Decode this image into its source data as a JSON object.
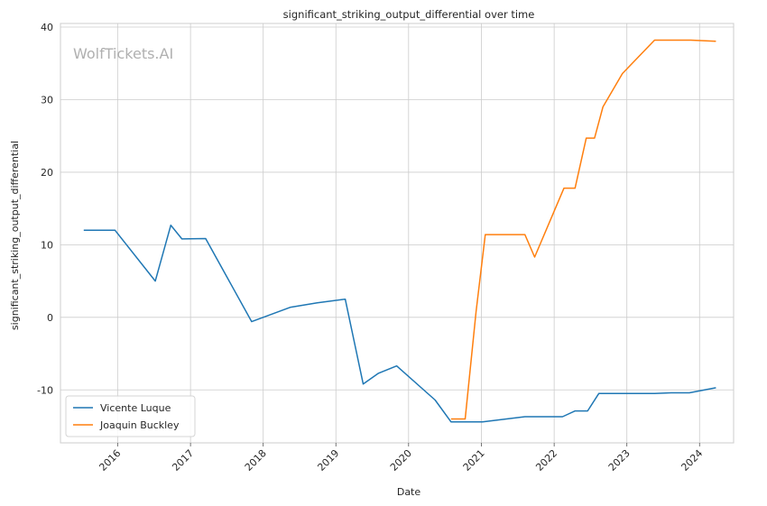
{
  "chart_data": {
    "type": "line",
    "title": "significant_striking_output_differential over time",
    "xlabel": "Date",
    "ylabel": "significant_striking_output_differential",
    "watermark": "WolfTickets.AI",
    "x_ticks": [
      "2016",
      "2017",
      "2018",
      "2019",
      "2020",
      "2021",
      "2022",
      "2023",
      "2024"
    ],
    "y_ticks": [
      -10,
      0,
      10,
      20,
      30,
      40
    ],
    "xlim": [
      "2015-03-20",
      "2024-06-20"
    ],
    "ylim": [
      -17.3,
      40.5
    ],
    "grid": true,
    "legend_position": "lower-left",
    "series": [
      {
        "name": "Vicente Luque",
        "color": "#1f77b4",
        "points": [
          [
            "2015-07-15",
            12.0
          ],
          [
            "2015-12-19",
            12.0
          ],
          [
            "2016-07-08",
            5.0
          ],
          [
            "2016-09-24",
            12.7
          ],
          [
            "2016-11-19",
            10.8
          ],
          [
            "2017-03-18",
            10.85
          ],
          [
            "2017-11-04",
            -0.6
          ],
          [
            "2018-05-19",
            1.4
          ],
          [
            "2018-09-29",
            2.0
          ],
          [
            "2019-02-17",
            2.5
          ],
          [
            "2019-05-18",
            -9.2
          ],
          [
            "2019-08-03",
            -7.7
          ],
          [
            "2019-11-02",
            -6.7
          ],
          [
            "2020-05-13",
            -11.4
          ],
          [
            "2020-08-01",
            -14.4
          ],
          [
            "2021-01-06",
            -14.4
          ],
          [
            "2021-08-07",
            -13.7
          ],
          [
            "2022-02-12",
            -13.7
          ],
          [
            "2022-04-16",
            -12.9
          ],
          [
            "2022-06-18",
            -12.9
          ],
          [
            "2022-08-13",
            -10.5
          ],
          [
            "2023-05-20",
            -10.5
          ],
          [
            "2023-08-12",
            -10.4
          ],
          [
            "2023-11-11",
            -10.4
          ],
          [
            "2024-03-23",
            -9.7
          ]
        ]
      },
      {
        "name": "Joaquin Buckley",
        "color": "#ff7f0e",
        "points": [
          [
            "2020-08-01",
            -14.0
          ],
          [
            "2020-10-11",
            -14.0
          ],
          [
            "2020-12-05",
            0.8
          ],
          [
            "2021-01-20",
            11.4
          ],
          [
            "2021-08-07",
            11.4
          ],
          [
            "2021-09-25",
            8.3
          ],
          [
            "2022-02-19",
            17.8
          ],
          [
            "2022-04-16",
            17.8
          ],
          [
            "2022-06-11",
            24.7
          ],
          [
            "2022-07-23",
            24.7
          ],
          [
            "2022-09-03",
            29.0
          ],
          [
            "2022-12-10",
            33.6
          ],
          [
            "2023-05-20",
            38.2
          ],
          [
            "2023-11-18",
            38.2
          ],
          [
            "2024-03-23",
            38.05
          ]
        ]
      }
    ]
  }
}
